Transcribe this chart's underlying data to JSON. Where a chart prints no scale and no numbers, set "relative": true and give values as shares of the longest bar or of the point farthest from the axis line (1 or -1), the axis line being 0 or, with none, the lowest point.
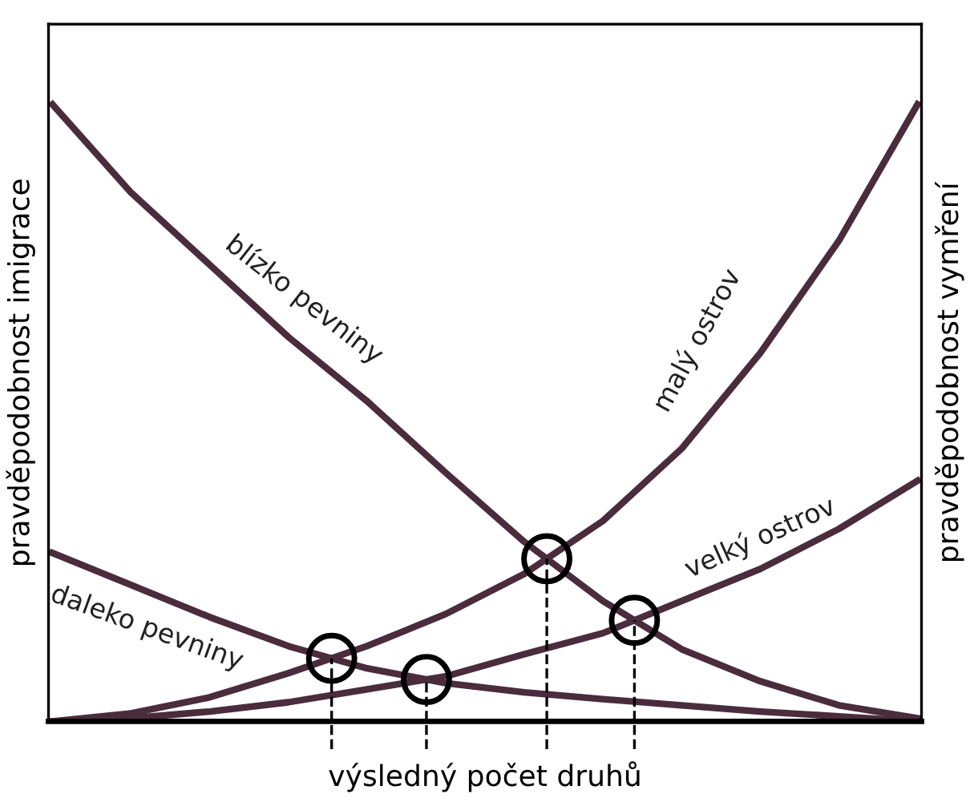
{
  "chart_data": {
    "type": "line",
    "relative": true,
    "xlabel": "výsledný počet druhů",
    "ylabel": "pravděpodobnost imigrace",
    "y2label": "pravděpodobnost vymření",
    "categories": [
      null,
      null,
      null,
      null,
      null,
      null,
      null,
      null,
      null,
      null,
      null,
      null
    ],
    "tick_labels": false,
    "grid": false,
    "series": [
      {
        "name": "blízko pevniny",
        "color": "#4a2c3c",
        "values": [
          1.0,
          0.857,
          0.74,
          0.623,
          0.519,
          0.403,
          0.291,
          0.195,
          0.117,
          0.065,
          0.026,
          0.005
        ]
      },
      {
        "name": "daleko pevniny",
        "color": "#4a2c3c",
        "values": [
          0.273,
          0.221,
          0.169,
          0.122,
          0.086,
          0.062,
          0.047,
          0.036,
          0.026,
          0.016,
          0.008,
          0
        ]
      },
      {
        "name": "malý ostrov",
        "color": "#4a2c3c",
        "values": [
          0,
          0.013,
          0.039,
          0.078,
          0.122,
          0.174,
          0.239,
          0.325,
          0.442,
          0.597,
          0.779,
          1.0
        ]
      },
      {
        "name": "velký ostrov",
        "color": "#4a2c3c",
        "values": [
          0,
          0.005,
          0.016,
          0.031,
          0.052,
          0.073,
          0.109,
          0.143,
          0.195,
          0.247,
          0.312,
          0.39
        ]
      }
    ]
  }
}
